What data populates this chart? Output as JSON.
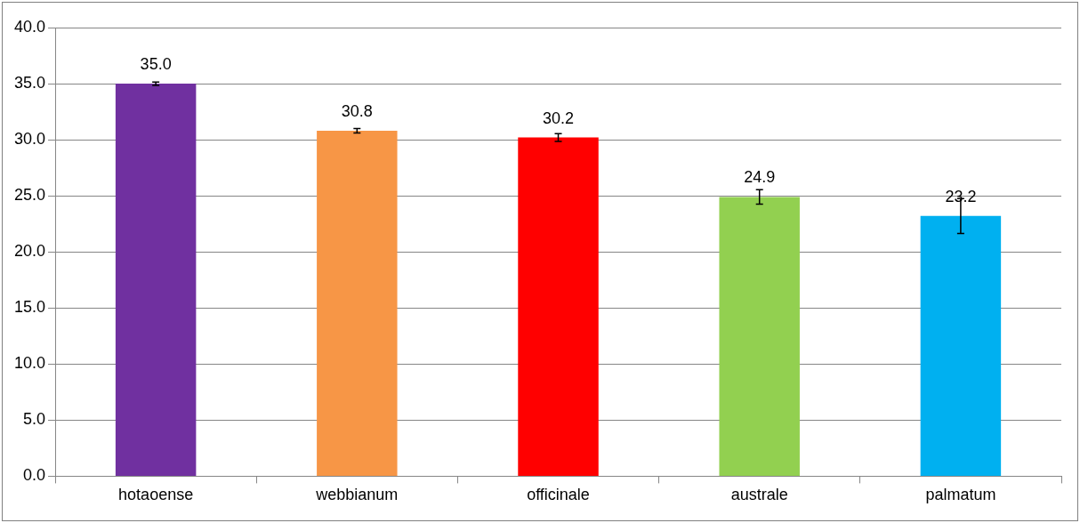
{
  "chart_data": {
    "type": "bar",
    "categories": [
      "hotaoense",
      "webbianum",
      "officinale",
      "australe",
      "palmatum"
    ],
    "values": [
      35.0,
      30.8,
      30.2,
      24.9,
      23.2
    ],
    "colors": [
      "#7030a0",
      "#f79646",
      "#ff0000",
      "#92d050",
      "#00b0f0"
    ],
    "errors": [
      0.15,
      0.2,
      0.35,
      0.65,
      1.55
    ],
    "value_labels": [
      "35.0",
      "30.8",
      "30.2",
      "24.9",
      "23.2"
    ],
    "ylim": [
      0,
      40
    ],
    "yticks": [
      {
        "value": 0,
        "label": "0.0"
      },
      {
        "value": 5,
        "label": "5.0"
      },
      {
        "value": 10,
        "label": "10.0"
      },
      {
        "value": 15,
        "label": "15.0"
      },
      {
        "value": 20,
        "label": "20.0"
      },
      {
        "value": 25,
        "label": "25.0"
      },
      {
        "value": 30,
        "label": "30.0"
      },
      {
        "value": 35,
        "label": "35.0"
      },
      {
        "value": 40,
        "label": "40.0"
      }
    ],
    "grid": "y",
    "legend": false
  }
}
